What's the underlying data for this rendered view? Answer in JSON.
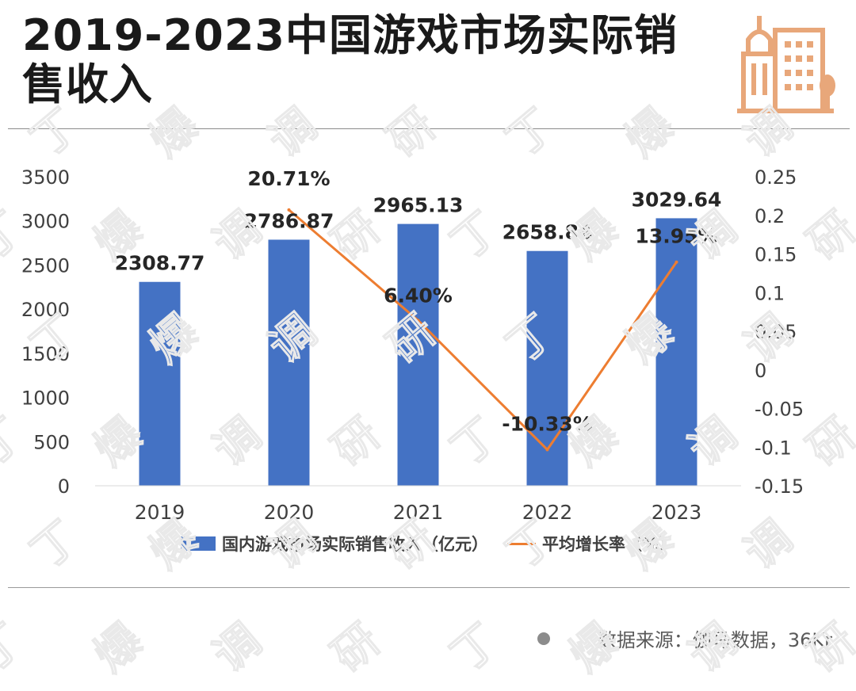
{
  "header": {
    "title": "2019-2023中国游戏市场实际销售收入",
    "icon": "building-icon",
    "icon_color": "#E8A77A"
  },
  "source": {
    "icon": "dot-icon",
    "text": "数据来源：伽马数据，36Kr"
  },
  "chart_data": {
    "type": "bar",
    "categories": [
      "2019",
      "2020",
      "2021",
      "2022",
      "2023"
    ],
    "series": [
      {
        "name": "国内游戏市场实际销售收入（亿元）",
        "type": "bar",
        "axis": "left",
        "color": "#4472C4",
        "values": [
          2308.77,
          2786.87,
          2965.13,
          2658.84,
          3029.64
        ],
        "data_labels": [
          "2308.77",
          "2786.87",
          "2965.13",
          "2658.84",
          "3029.64"
        ]
      },
      {
        "name": "平均增长率（%）",
        "type": "line",
        "axis": "right",
        "color": "#ED7D31",
        "values": [
          null,
          0.2071,
          0.064,
          -0.1033,
          0.1395
        ],
        "data_labels": [
          "",
          "20.71%",
          "6.40%",
          "-10.33%",
          "13.95%"
        ]
      }
    ],
    "y_left": {
      "lim": [
        0,
        3500
      ],
      "ticks": [
        0,
        500,
        1000,
        1500,
        2000,
        2500,
        3000,
        3500
      ],
      "tick_labels": [
        "0",
        "500",
        "1000",
        "1500",
        "2000",
        "2500",
        "3000",
        "3500"
      ]
    },
    "y_right": {
      "lim": [
        -0.15,
        0.25
      ],
      "ticks": [
        -0.15,
        -0.1,
        -0.05,
        0,
        0.05,
        0.1,
        0.15,
        0.2,
        0.25
      ],
      "tick_labels": [
        "-0.15",
        "-0.1",
        "-0.05",
        "0",
        "0.05",
        "0.1",
        "0.15",
        "0.2",
        "0.25"
      ]
    },
    "grid": false,
    "legend_position": "bottom",
    "watermark_text": "丁爆调研"
  }
}
